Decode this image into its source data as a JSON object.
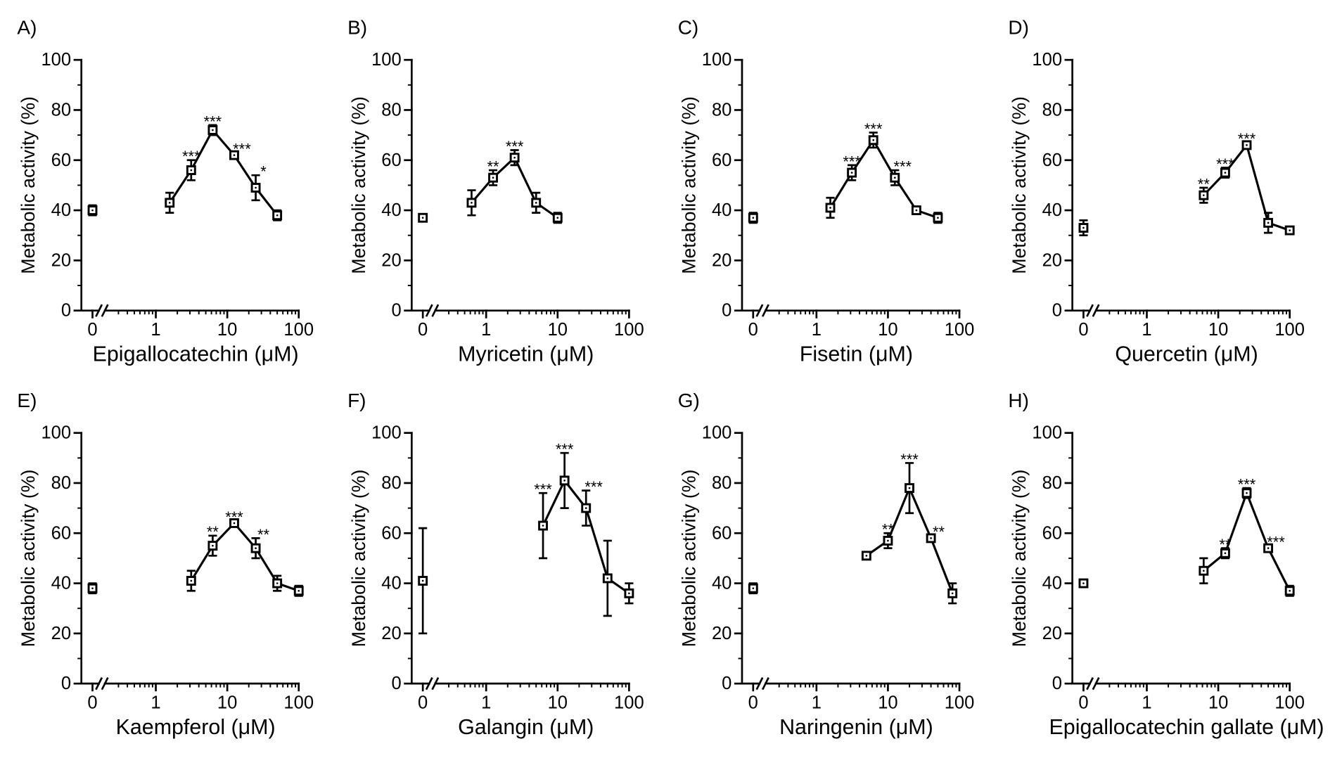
{
  "colors": {
    "ink": "#000000"
  },
  "chart_data": [
    {
      "panel": "A)",
      "type": "line",
      "xlabel": "Epigallocatechin (μM)",
      "ylabel": "Metabolic activity (%)",
      "xscale": "log",
      "x_axis_break": true,
      "grid": false,
      "xticks": [
        "0",
        "1",
        "10",
        "100"
      ],
      "yticks": [
        "0",
        "20",
        "40",
        "60",
        "80",
        "100"
      ],
      "ylim": [
        0,
        100
      ],
      "points": [
        {
          "x": 0,
          "y": 40,
          "err": 2
        },
        {
          "x": 1.5625,
          "y": 43,
          "err": 4
        },
        {
          "x": 3.125,
          "y": 56,
          "err": 4,
          "sig": "***"
        },
        {
          "x": 6.25,
          "y": 72,
          "err": 2,
          "sig": "***"
        },
        {
          "x": 12.5,
          "y": 62,
          "err": 1,
          "sig": "***"
        },
        {
          "x": 25,
          "y": 49,
          "err": 5,
          "sig": "*"
        },
        {
          "x": 50,
          "y": 38,
          "err": 2
        }
      ]
    },
    {
      "panel": "B)",
      "type": "line",
      "xlabel": "Myricetin (μM)",
      "ylabel": "Metabolic activity (%)",
      "xscale": "log",
      "x_axis_break": true,
      "grid": false,
      "xticks": [
        "0",
        "1",
        "10",
        "100"
      ],
      "yticks": [
        "0",
        "20",
        "40",
        "60",
        "80",
        "100"
      ],
      "ylim": [
        0,
        100
      ],
      "points": [
        {
          "x": 0,
          "y": 37,
          "err": 1
        },
        {
          "x": 0.625,
          "y": 43,
          "err": 5
        },
        {
          "x": 1.25,
          "y": 53,
          "err": 3,
          "sig": "**"
        },
        {
          "x": 2.5,
          "y": 61,
          "err": 3,
          "sig": "***"
        },
        {
          "x": 5,
          "y": 43,
          "err": 4
        },
        {
          "x": 10,
          "y": 37,
          "err": 2
        }
      ]
    },
    {
      "panel": "C)",
      "type": "line",
      "xlabel": "Fisetin (μM)",
      "ylabel": "Metabolic activity (%)",
      "xscale": "log",
      "x_axis_break": true,
      "grid": false,
      "xticks": [
        "0",
        "1",
        "10",
        "100"
      ],
      "yticks": [
        "0",
        "20",
        "40",
        "60",
        "80",
        "100"
      ],
      "ylim": [
        0,
        100
      ],
      "points": [
        {
          "x": 0,
          "y": 37,
          "err": 2
        },
        {
          "x": 1.5625,
          "y": 41,
          "err": 4
        },
        {
          "x": 3.125,
          "y": 55,
          "err": 3,
          "sig": "***"
        },
        {
          "x": 6.25,
          "y": 68,
          "err": 3,
          "sig": "***"
        },
        {
          "x": 12.5,
          "y": 53,
          "err": 3,
          "sig": "***"
        },
        {
          "x": 25,
          "y": 40,
          "err": 1
        },
        {
          "x": 50,
          "y": 37,
          "err": 2
        }
      ]
    },
    {
      "panel": "D)",
      "type": "line",
      "xlabel": "Quercetin (μM)",
      "ylabel": "Metabolic activity (%)",
      "xscale": "log",
      "x_axis_break": true,
      "grid": false,
      "xticks": [
        "0",
        "1",
        "10",
        "100"
      ],
      "yticks": [
        "0",
        "20",
        "40",
        "60",
        "80",
        "100"
      ],
      "ylim": [
        0,
        100
      ],
      "points": [
        {
          "x": 0,
          "y": 33,
          "err": 3
        },
        {
          "x": 6.25,
          "y": 46,
          "err": 3,
          "sig": "**"
        },
        {
          "x": 12.5,
          "y": 55,
          "err": 2,
          "sig": "***"
        },
        {
          "x": 25,
          "y": 66,
          "err": 1,
          "sig": "***"
        },
        {
          "x": 50,
          "y": 35,
          "err": 4
        },
        {
          "x": 100,
          "y": 32,
          "err": 1
        }
      ]
    },
    {
      "panel": "E)",
      "type": "line",
      "xlabel": "Kaempferol (μM)",
      "ylabel": "Metabolic activity (%)",
      "xscale": "log",
      "x_axis_break": true,
      "grid": false,
      "xticks": [
        "0",
        "1",
        "10",
        "100"
      ],
      "yticks": [
        "0",
        "20",
        "40",
        "60",
        "80",
        "100"
      ],
      "ylim": [
        0,
        100
      ],
      "points": [
        {
          "x": 0,
          "y": 38,
          "err": 2
        },
        {
          "x": 3.125,
          "y": 41,
          "err": 4
        },
        {
          "x": 6.25,
          "y": 55,
          "err": 4,
          "sig": "**"
        },
        {
          "x": 12.5,
          "y": 64,
          "err": 1,
          "sig": "***"
        },
        {
          "x": 25,
          "y": 54,
          "err": 4,
          "sig": "**"
        },
        {
          "x": 50,
          "y": 40,
          "err": 3
        },
        {
          "x": 100,
          "y": 37,
          "err": 2
        }
      ]
    },
    {
      "panel": "F)",
      "type": "line",
      "xlabel": "Galangin (μM)",
      "ylabel": "Metabolic activity (%)",
      "xscale": "log",
      "x_axis_break": true,
      "grid": false,
      "xticks": [
        "0",
        "1",
        "10",
        "100"
      ],
      "yticks": [
        "0",
        "20",
        "40",
        "60",
        "80",
        "100"
      ],
      "ylim": [
        0,
        100
      ],
      "points": [
        {
          "x": 0,
          "y": 41,
          "err": 21
        },
        {
          "x": 6.25,
          "y": 63,
          "err": 13,
          "sig": "***"
        },
        {
          "x": 12.5,
          "y": 81,
          "err": 11,
          "sig": "***"
        },
        {
          "x": 25,
          "y": 70,
          "err": 7,
          "sig": "***"
        },
        {
          "x": 50,
          "y": 42,
          "err": 15
        },
        {
          "x": 100,
          "y": 36,
          "err": 4
        }
      ]
    },
    {
      "panel": "G)",
      "type": "line",
      "xlabel": "Naringenin (μM)",
      "ylabel": "Metabolic activity (%)",
      "xscale": "log",
      "x_axis_break": true,
      "grid": false,
      "xticks": [
        "0",
        "1",
        "10",
        "100"
      ],
      "yticks": [
        "0",
        "20",
        "40",
        "60",
        "80",
        "100"
      ],
      "ylim": [
        0,
        100
      ],
      "points": [
        {
          "x": 0,
          "y": 38,
          "err": 2
        },
        {
          "x": 5,
          "y": 51,
          "err": 1
        },
        {
          "x": 10,
          "y": 57,
          "err": 3,
          "sig": "**"
        },
        {
          "x": 20,
          "y": 78,
          "err": 10,
          "sig": "***"
        },
        {
          "x": 40,
          "y": 58,
          "err": 1,
          "sig": "**"
        },
        {
          "x": 80,
          "y": 36,
          "err": 4
        }
      ]
    },
    {
      "panel": "H)",
      "type": "line",
      "xlabel": "Epigallocatechin gallate (μM)",
      "ylabel": "Metabolic activity (%)",
      "xscale": "log",
      "x_axis_break": true,
      "grid": false,
      "xticks": [
        "0",
        "1",
        "10",
        "100"
      ],
      "yticks": [
        "0",
        "20",
        "40",
        "60",
        "80",
        "100"
      ],
      "ylim": [
        0,
        100
      ],
      "points": [
        {
          "x": 0,
          "y": 40,
          "err": 1
        },
        {
          "x": 6.25,
          "y": 45,
          "err": 5
        },
        {
          "x": 12.5,
          "y": 52,
          "err": 2,
          "sig": "**"
        },
        {
          "x": 25,
          "y": 76,
          "err": 2,
          "sig": "***"
        },
        {
          "x": 50,
          "y": 54,
          "err": 1,
          "sig": "***"
        },
        {
          "x": 100,
          "y": 37,
          "err": 2
        }
      ]
    }
  ]
}
